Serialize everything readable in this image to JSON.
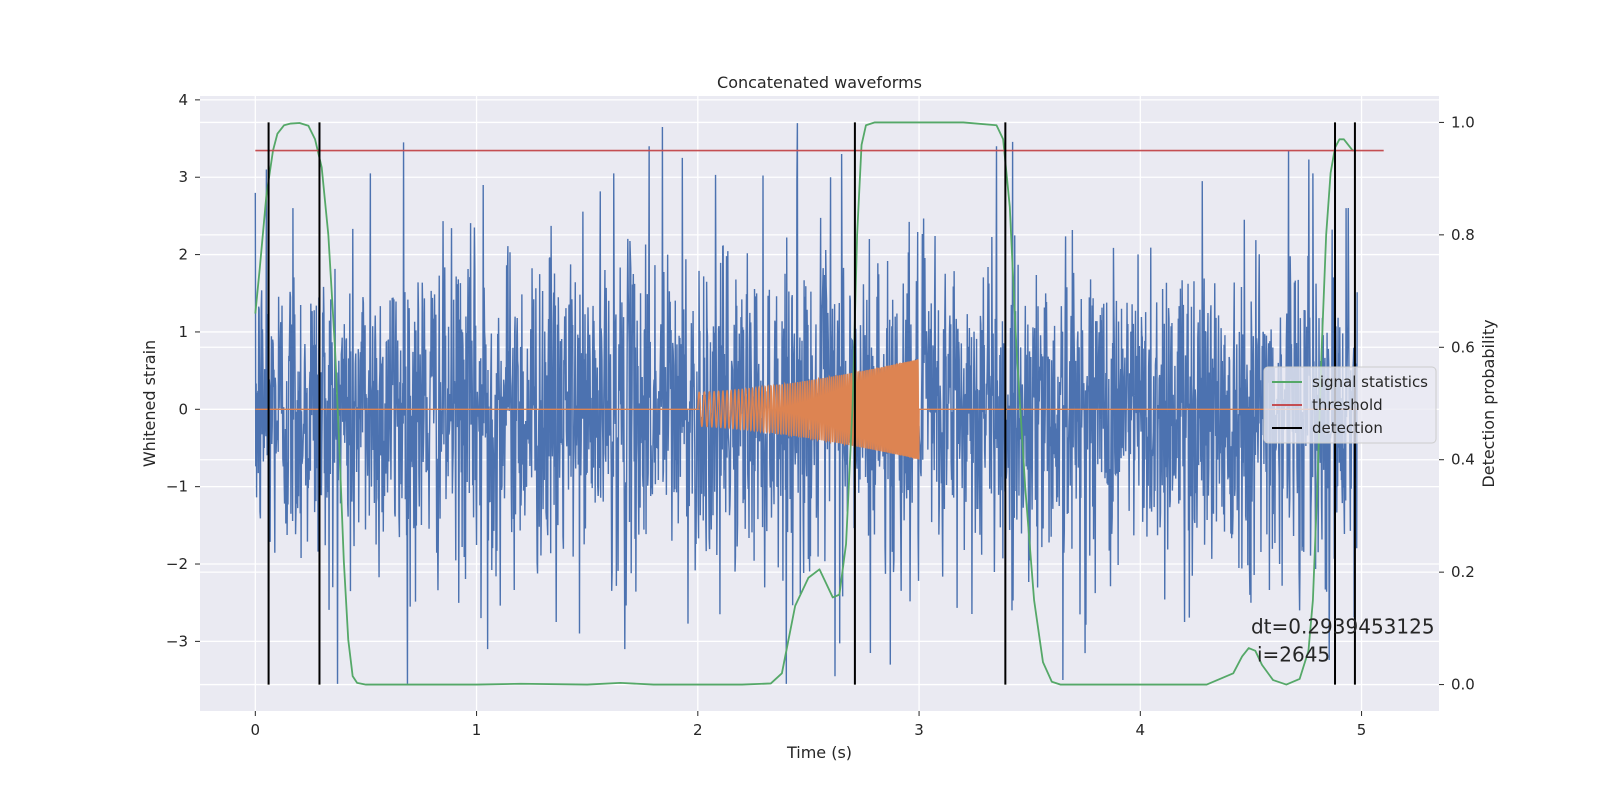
{
  "chart_data": {
    "type": "line",
    "title": "Concatenated waveforms",
    "xlabel": "Time (s)",
    "ylabel": "Whitened strain",
    "y2label": "Detection probability",
    "xlim": [
      -0.25,
      5.35
    ],
    "ylim": [
      -3.9,
      4.05
    ],
    "y2lim": [
      -0.047,
      1.047
    ],
    "xticks": [
      0,
      1,
      2,
      3,
      4,
      5
    ],
    "yticks": [
      -3,
      -2,
      -1,
      0,
      1,
      2,
      3,
      4
    ],
    "y2ticks": [
      0.0,
      0.2,
      0.4,
      0.6,
      0.8,
      1.0
    ],
    "grid": true,
    "legend_position": "center-right",
    "legend": [
      {
        "label": "signal statistics",
        "color": "#55a868"
      },
      {
        "label": "threshold",
        "color": "#c44e52"
      },
      {
        "label": "detection",
        "color": "#000000"
      }
    ],
    "strain_noise": {
      "color": "#4c72b0",
      "x_range": [
        0,
        4.98
      ],
      "typical_amplitude": 1.4,
      "min": -3.55,
      "max": 3.7,
      "spikes": [
        {
          "x": 0.05,
          "y": 3.1
        },
        {
          "x": 0.06,
          "y": -2.35
        },
        {
          "x": 0.17,
          "y": -1.85
        },
        {
          "x": 0.17,
          "y": 2.6
        },
        {
          "x": 0.35,
          "y": -2.3
        },
        {
          "x": 0.43,
          "y": -2.35
        },
        {
          "x": 0.52,
          "y": 3.05
        },
        {
          "x": 0.67,
          "y": 3.45
        },
        {
          "x": 0.7,
          "y": -2.55
        },
        {
          "x": 1.02,
          "y": -2.7
        },
        {
          "x": 1.03,
          "y": 2.9
        },
        {
          "x": 1.05,
          "y": -3.1
        },
        {
          "x": 1.36,
          "y": -2.75
        },
        {
          "x": 1.62,
          "y": 3.05
        },
        {
          "x": 1.67,
          "y": -3.1
        },
        {
          "x": 1.78,
          "y": 3.4
        },
        {
          "x": 1.84,
          "y": 3.65
        },
        {
          "x": 1.93,
          "y": 3.25
        },
        {
          "x": 2.1,
          "y": -2.65
        },
        {
          "x": 2.45,
          "y": 3.7
        },
        {
          "x": 2.6,
          "y": 3.0
        },
        {
          "x": 2.62,
          "y": -3.45
        },
        {
          "x": 2.65,
          "y": 3.3
        },
        {
          "x": 2.78,
          "y": -3.15
        },
        {
          "x": 2.87,
          "y": -3.3
        },
        {
          "x": 3.35,
          "y": 3.4
        },
        {
          "x": 3.42,
          "y": -2.6
        },
        {
          "x": 3.65,
          "y": -3.5
        },
        {
          "x": 4.2,
          "y": -2.75
        },
        {
          "x": 4.28,
          "y": 2.95
        },
        {
          "x": 4.47,
          "y": 2.45
        },
        {
          "x": 4.5,
          "y": -2.5
        },
        {
          "x": 4.67,
          "y": 3.35
        },
        {
          "x": 4.72,
          "y": -2.6
        },
        {
          "x": 4.78,
          "y": 3.05
        },
        {
          "x": 4.93,
          "y": 2.6
        }
      ]
    },
    "injected_signal": {
      "color": "#dd8452",
      "x_flat": [
        0,
        4.98
      ],
      "chirp_x_range": [
        2.0,
        3.0
      ],
      "start_amplitude": 0.22,
      "end_amplitude": 0.65,
      "start_frequency_hz": 40,
      "end_frequency_hz": 150
    },
    "signal_statistics": {
      "color": "#55a868",
      "axis": "secondary",
      "x": [
        0.0,
        0.02,
        0.05,
        0.08,
        0.1,
        0.13,
        0.16,
        0.2,
        0.24,
        0.27,
        0.3,
        0.33,
        0.36,
        0.38,
        0.4,
        0.42,
        0.44,
        0.46,
        0.5,
        0.8,
        1.0,
        1.2,
        1.5,
        1.65,
        1.8,
        2.0,
        2.2,
        2.33,
        2.38,
        2.41,
        2.44,
        2.5,
        2.55,
        2.58,
        2.61,
        2.64,
        2.67,
        2.7,
        2.72,
        2.74,
        2.76,
        2.8,
        3.0,
        3.2,
        3.35,
        3.38,
        3.41,
        3.44,
        3.48,
        3.52,
        3.56,
        3.6,
        3.64,
        3.7,
        4.0,
        4.3,
        4.42,
        4.46,
        4.49,
        4.52,
        4.55,
        4.6,
        4.66,
        4.72,
        4.76,
        4.78,
        4.8,
        4.82,
        4.84,
        4.86,
        4.88,
        4.9,
        4.92,
        4.94,
        4.96,
        4.97
      ],
      "y": [
        0.66,
        0.74,
        0.87,
        0.95,
        0.98,
        0.995,
        0.998,
        0.999,
        0.994,
        0.97,
        0.92,
        0.8,
        0.6,
        0.42,
        0.22,
        0.08,
        0.015,
        0.003,
        0.0,
        0.0,
        0.0,
        0.0015,
        0.0,
        0.003,
        0.0,
        0.0,
        0.0,
        0.002,
        0.02,
        0.08,
        0.14,
        0.19,
        0.205,
        0.18,
        0.155,
        0.16,
        0.25,
        0.5,
        0.8,
        0.96,
        0.995,
        1.0,
        1.0,
        1.0,
        0.995,
        0.97,
        0.85,
        0.6,
        0.35,
        0.15,
        0.04,
        0.005,
        0.0,
        0.0,
        0.0,
        0.0,
        0.02,
        0.05,
        0.065,
        0.06,
        0.035,
        0.008,
        0.0,
        0.01,
        0.06,
        0.15,
        0.35,
        0.6,
        0.8,
        0.91,
        0.955,
        0.97,
        0.97,
        0.96,
        0.95,
        0.95
      ]
    },
    "threshold": {
      "value": 0.95,
      "x_range": [
        0,
        5.1
      ],
      "axis": "secondary"
    },
    "detections": [
      0.06,
      0.29,
      2.71,
      3.39,
      4.88,
      4.97
    ],
    "detection_y2_range": [
      0,
      1.0
    ],
    "annotations": [
      "dt=0.2939453125",
      "i=2645"
    ],
    "annotation_position": {
      "x": 4.5,
      "y": -2.9
    }
  }
}
